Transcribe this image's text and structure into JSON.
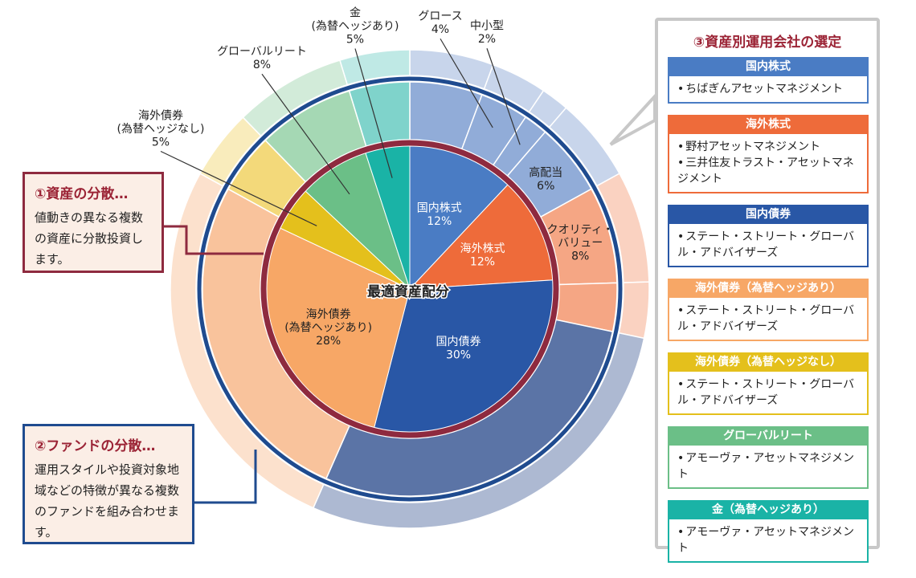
{
  "chart_data": {
    "type": "pie",
    "title": "最適資産配分",
    "inner_slices": [
      {
        "name": "国内株式",
        "value": 12,
        "pct_label": "12%",
        "color": "#4a7cc4"
      },
      {
        "name": "海外株式",
        "value": 12,
        "pct_label": "12%",
        "color": "#ee6b3a"
      },
      {
        "name": "国内債券",
        "value": 30,
        "pct_label": "30%",
        "color": "#2957a6"
      },
      {
        "name": "海外債券\n(為替ヘッジあり)",
        "value": 28,
        "pct_label": "28%",
        "color": "#f7a766"
      },
      {
        "name": "",
        "value": 5,
        "pct_label": "",
        "color": "#e4c01c"
      },
      {
        "name": "",
        "value": 8,
        "pct_label": "",
        "color": "#6bbf87"
      },
      {
        "name": "",
        "value": 5,
        "pct_label": "",
        "color": "#1ab3a6"
      }
    ],
    "outer_slices": [
      {
        "name": "",
        "value": 6,
        "pct_label": "",
        "color": "#91acd8"
      },
      {
        "name": "",
        "value": 4,
        "pct_label": "",
        "color": "#91acd8"
      },
      {
        "name": "",
        "value": 2,
        "pct_label": "",
        "color": "#91acd8"
      },
      {
        "name": "高配当",
        "value": 6,
        "pct_label": "6%",
        "color": "#91acd8"
      },
      {
        "name": "クオリティ・\nバリュー",
        "value": 8,
        "pct_label": "8%",
        "color": "#f5a684"
      },
      {
        "name": "",
        "value": 4,
        "pct_label": "",
        "color": "#f5a684"
      },
      {
        "name": "",
        "value": 30,
        "pct_label": "",
        "color": "#5b74a6"
      },
      {
        "name": "",
        "value": 28,
        "pct_label": "",
        "color": "#f9c39c"
      },
      {
        "name": "",
        "value": 5,
        "pct_label": "",
        "color": "#f3d97a"
      },
      {
        "name": "",
        "value": 8,
        "pct_label": "",
        "color": "#a5d8b4"
      },
      {
        "name": "",
        "value": 5,
        "pct_label": "",
        "color": "#7fd3cb"
      }
    ],
    "external_labels": [
      {
        "text": "グロース\n4%"
      },
      {
        "text": "中小型\n2%"
      },
      {
        "text": "金\n(為替ヘッジあり)\n5%"
      },
      {
        "text": "グローバルリート\n8%"
      },
      {
        "text": "海外債券\n(為替ヘッジなし)\n5%"
      }
    ]
  },
  "notes": {
    "note1": {
      "title": "①資産の分散…",
      "text": "値動きの異なる複数の資産に分散投資します。"
    },
    "note2": {
      "title": "②ファンドの分散…",
      "text": "運用スタイルや投資対象地域などの特徴が異なる複数のファンドを組み合わせます。"
    }
  },
  "panel": {
    "title": "③資産別運用会社の選定",
    "groups": [
      {
        "header": "国内株式",
        "color": "#4a7cc4",
        "items": [
          "ちばぎんアセットマネジメント"
        ]
      },
      {
        "header": "海外株式",
        "color": "#ee6b3a",
        "items": [
          "野村アセットマネジメント",
          "三井住友トラスト・アセットマネジメント"
        ]
      },
      {
        "header": "国内債券",
        "color": "#2957a6",
        "items": [
          "ステート・ストリート・グローバル・アドバイザーズ"
        ]
      },
      {
        "header": "海外債券（為替ヘッジあり）",
        "color": "#f7a766",
        "items": [
          "ステート・ストリート・グローバル・アドバイザーズ"
        ]
      },
      {
        "header": "海外債券（為替ヘッジなし）",
        "color": "#e4c01c",
        "items": [
          "ステート・ストリート・グローバル・アドバイザーズ"
        ]
      },
      {
        "header": "グローバルリート",
        "color": "#6bbf87",
        "items": [
          "アモーヴァ・アセットマネジメント"
        ]
      },
      {
        "header": "金（為替ヘッジあり）",
        "color": "#1ab3a6",
        "items": [
          "アモーヴァ・アセットマネジメント"
        ]
      }
    ]
  }
}
